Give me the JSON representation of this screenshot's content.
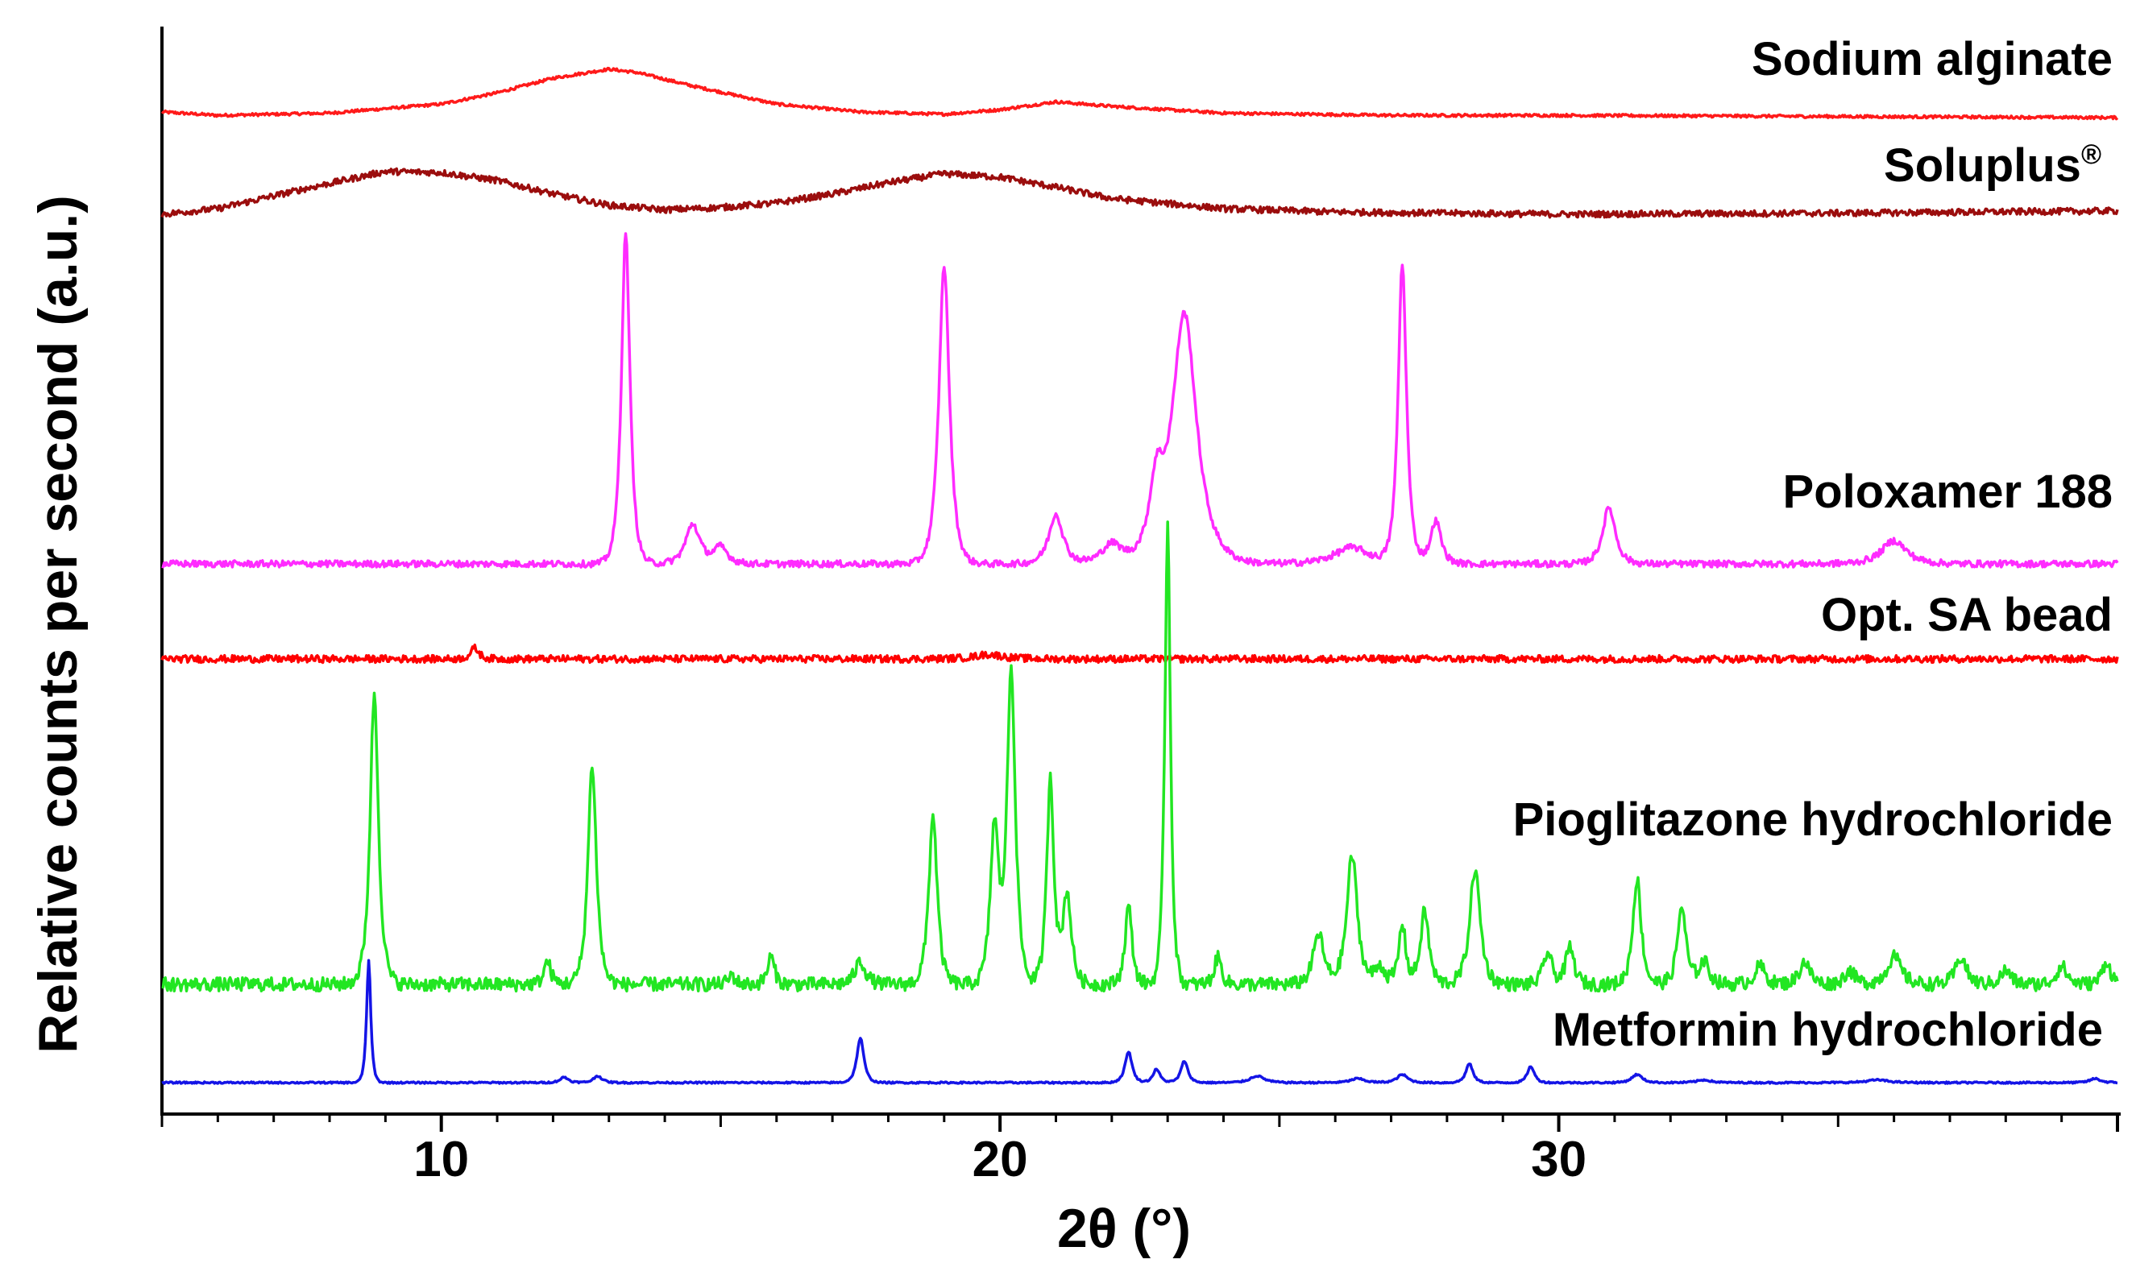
{
  "chart_data": {
    "type": "line",
    "title": "",
    "xlabel": "2θ (°)",
    "ylabel": "Relative counts per second (a.u.)",
    "xlim": [
      5,
      40
    ],
    "x_ticks": [
      10,
      20,
      30
    ],
    "x_tick_labels": [
      "10",
      "20",
      "30"
    ],
    "grid": false,
    "series": [
      {
        "name": "Sodium alginate",
        "label_text": "Sodium alginate",
        "label_sup": "",
        "color": "#ff1a1a",
        "baseline": 0.0,
        "noise": 0.012,
        "points": [
          [
            5,
            0.05
          ],
          [
            6,
            0.02
          ],
          [
            8,
            0.04
          ],
          [
            10,
            0.12
          ],
          [
            11,
            0.22
          ],
          [
            12,
            0.35
          ],
          [
            13,
            0.43
          ],
          [
            13.5,
            0.4
          ],
          [
            14.5,
            0.28
          ],
          [
            16,
            0.12
          ],
          [
            17.5,
            0.05
          ],
          [
            19,
            0.03
          ],
          [
            20,
            0.07
          ],
          [
            21,
            0.14
          ],
          [
            22,
            0.1
          ],
          [
            24,
            0.04
          ],
          [
            27,
            0.02
          ],
          [
            30,
            0.02
          ],
          [
            35,
            0.01
          ],
          [
            40,
            0.0
          ]
        ]
      },
      {
        "name": "Soluplus®",
        "label_text": "Soluplus",
        "label_sup": "®",
        "color": "#9b0d0d",
        "baseline": 0.0,
        "noise": 0.028,
        "points": [
          [
            5,
            0.0
          ],
          [
            6,
            0.05
          ],
          [
            7.5,
            0.22
          ],
          [
            9,
            0.38
          ],
          [
            10,
            0.37
          ],
          [
            11,
            0.3
          ],
          [
            12,
            0.18
          ],
          [
            13,
            0.08
          ],
          [
            14,
            0.04
          ],
          [
            15,
            0.06
          ],
          [
            16,
            0.1
          ],
          [
            17,
            0.18
          ],
          [
            18,
            0.28
          ],
          [
            19,
            0.36
          ],
          [
            20,
            0.33
          ],
          [
            21,
            0.24
          ],
          [
            22,
            0.14
          ],
          [
            24,
            0.05
          ],
          [
            26,
            0.02
          ],
          [
            30,
            0.0
          ],
          [
            35,
            0.01
          ],
          [
            40,
            0.03
          ]
        ]
      },
      {
        "name": "Poloxamer 188",
        "label_text": "Poloxamer 188",
        "label_sup": "",
        "color": "#ff2bff",
        "baseline": 0.0,
        "noise": 0.01,
        "peaks": [
          [
            13.3,
            1.0,
            0.12
          ],
          [
            14.5,
            0.12,
            0.2
          ],
          [
            15.0,
            0.05,
            0.2
          ],
          [
            19.0,
            0.9,
            0.15
          ],
          [
            21.0,
            0.15,
            0.2
          ],
          [
            22.0,
            0.06,
            0.3
          ],
          [
            23.3,
            0.75,
            0.35
          ],
          [
            22.8,
            0.2,
            0.2
          ],
          [
            26.3,
            0.05,
            0.5
          ],
          [
            27.2,
            0.9,
            0.12
          ],
          [
            27.8,
            0.13,
            0.15
          ],
          [
            30.9,
            0.17,
            0.18
          ],
          [
            36.0,
            0.07,
            0.35
          ]
        ]
      },
      {
        "name": "Opt. SA bead",
        "label_text": "Opt. SA bead",
        "label_sup": "",
        "color": "#ff0000",
        "baseline": 0.0,
        "noise": 0.04,
        "peaks": [
          [
            10.6,
            0.12,
            0.12
          ],
          [
            19.8,
            0.05,
            0.4
          ]
        ]
      },
      {
        "name": "Pioglitazone hydrochloride",
        "label_text": "Pioglitazone hydrochloride",
        "label_sup": "",
        "color": "#22e622",
        "baseline": 0.0,
        "noise": 0.015,
        "peaks": [
          [
            8.8,
            0.63,
            0.12
          ],
          [
            11.9,
            0.05,
            0.1
          ],
          [
            12.7,
            0.48,
            0.12
          ],
          [
            15.2,
            0.02,
            0.1
          ],
          [
            15.9,
            0.06,
            0.1
          ],
          [
            17.5,
            0.05,
            0.15
          ],
          [
            18.8,
            0.37,
            0.12
          ],
          [
            19.9,
            0.34,
            0.12
          ],
          [
            20.2,
            0.68,
            0.12
          ],
          [
            20.9,
            0.45,
            0.1
          ],
          [
            21.2,
            0.2,
            0.12
          ],
          [
            22.3,
            0.17,
            0.1
          ],
          [
            23.0,
            1.0,
            0.08
          ],
          [
            23.9,
            0.06,
            0.1
          ],
          [
            25.7,
            0.11,
            0.15
          ],
          [
            26.3,
            0.28,
            0.15
          ],
          [
            26.8,
            0.04,
            0.15
          ],
          [
            27.2,
            0.13,
            0.1
          ],
          [
            27.6,
            0.16,
            0.12
          ],
          [
            28.5,
            0.25,
            0.15
          ],
          [
            29.8,
            0.07,
            0.12
          ],
          [
            30.2,
            0.08,
            0.12
          ],
          [
            31.4,
            0.23,
            0.12
          ],
          [
            32.2,
            0.17,
            0.12
          ],
          [
            32.6,
            0.05,
            0.15
          ],
          [
            33.6,
            0.04,
            0.15
          ],
          [
            34.4,
            0.05,
            0.15
          ],
          [
            35.2,
            0.03,
            0.15
          ],
          [
            36.0,
            0.06,
            0.2
          ],
          [
            37.2,
            0.06,
            0.15
          ],
          [
            38.0,
            0.03,
            0.15
          ],
          [
            39.0,
            0.04,
            0.15
          ],
          [
            39.8,
            0.05,
            0.12
          ]
        ]
      },
      {
        "name": "Metformin hydrochloride",
        "label_text": "Metformin hydrochloride",
        "label_sup": "",
        "color": "#1414e6",
        "baseline": 0.0,
        "noise": 0.006,
        "peaks": [
          [
            8.7,
            0.9,
            0.06
          ],
          [
            12.2,
            0.04,
            0.12
          ],
          [
            12.8,
            0.05,
            0.12
          ],
          [
            17.5,
            0.33,
            0.1
          ],
          [
            22.3,
            0.23,
            0.1
          ],
          [
            22.8,
            0.1,
            0.1
          ],
          [
            23.3,
            0.16,
            0.1
          ],
          [
            24.6,
            0.05,
            0.2
          ],
          [
            26.4,
            0.03,
            0.2
          ],
          [
            27.2,
            0.06,
            0.15
          ],
          [
            28.4,
            0.14,
            0.1
          ],
          [
            29.5,
            0.12,
            0.1
          ],
          [
            31.4,
            0.06,
            0.15
          ],
          [
            32.6,
            0.02,
            0.2
          ],
          [
            35.7,
            0.02,
            0.3
          ],
          [
            39.6,
            0.03,
            0.15
          ]
        ]
      }
    ]
  }
}
